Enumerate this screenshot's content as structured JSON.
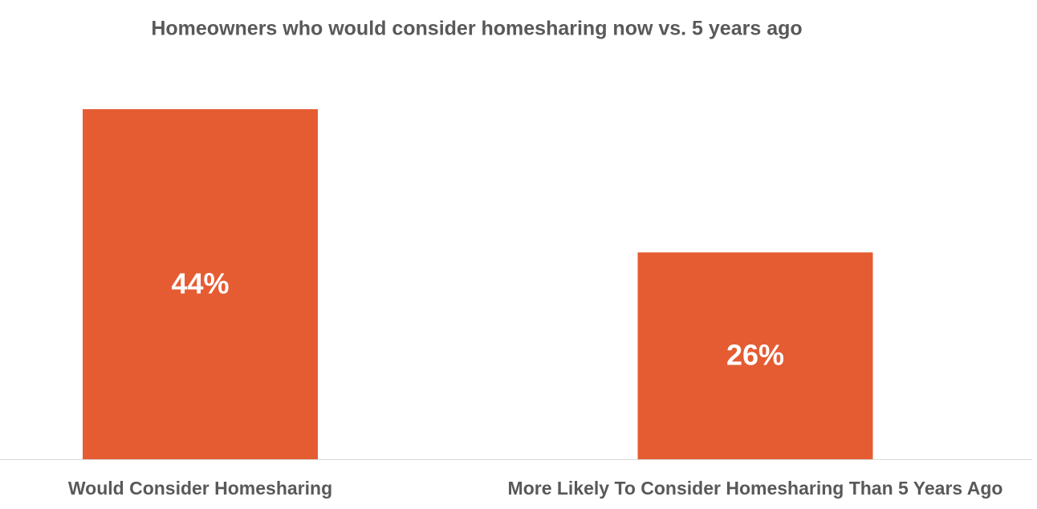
{
  "chart_data": {
    "type": "bar",
    "title": "Homeowners who would consider homesharing now vs. 5 years ago",
    "categories": [
      "Would Consider Homesharing",
      "More Likely To Consider Homesharing Than 5 Years Ago"
    ],
    "values": [
      44,
      26
    ],
    "value_labels": [
      "44%",
      "26%"
    ],
    "color": "#e55c33"
  }
}
